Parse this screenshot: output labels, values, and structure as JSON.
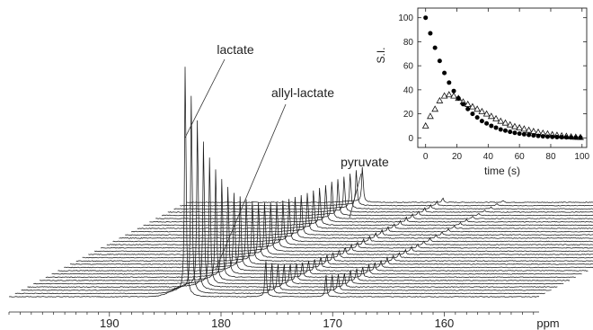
{
  "chart_data": [
    {
      "type": "line",
      "kind": "stacked-spectra",
      "title": "",
      "xlabel": "ppm",
      "ylabel": "",
      "x_reversed": true,
      "xlim": [
        199,
        151.5
      ],
      "x_ticks": [
        190,
        180,
        170,
        160
      ],
      "n_spectra": 30,
      "peaks": [
        {
          "name": "lactate",
          "ppm": 183.2
        },
        {
          "name": "allyl-lactate",
          "ppm": 176.0
        },
        {
          "name": "pyruvate",
          "ppm": 170.6
        }
      ],
      "annotations": [
        "lactate",
        "allyl-lactate",
        "pyruvate"
      ],
      "grid": false
    },
    {
      "type": "scatter",
      "title": "",
      "xlabel": "time (s)",
      "ylabel": "S.I.",
      "xlim": [
        -5,
        103
      ],
      "ylim": [
        -8,
        108
      ],
      "x_ticks": [
        0,
        20,
        40,
        60,
        80,
        100
      ],
      "y_ticks": [
        0,
        20,
        40,
        60,
        80,
        100
      ],
      "grid": false,
      "series": [
        {
          "marker": "filled-circle",
          "color": "#000000",
          "x": [
            0,
            3,
            6,
            9,
            12,
            15,
            18,
            21,
            24,
            27,
            30,
            33,
            36,
            39,
            42,
            45,
            48,
            51,
            54,
            57,
            60,
            63,
            66,
            69,
            72,
            75,
            78,
            81,
            84,
            87,
            90,
            93,
            96,
            99
          ],
          "y": [
            100,
            87,
            75,
            64,
            54,
            46,
            39,
            33,
            28,
            24,
            20,
            17,
            14,
            12,
            10,
            8.5,
            7,
            6,
            5,
            4.2,
            3.5,
            3,
            2.5,
            2,
            1.6,
            1.3,
            1,
            0.8,
            0.6,
            0.5,
            0.4,
            0.3,
            0.2,
            0.2
          ]
        },
        {
          "marker": "open-triangle",
          "color": "#000000",
          "x": [
            0,
            3,
            6,
            9,
            12,
            15,
            18,
            21,
            24,
            27,
            30,
            33,
            36,
            39,
            42,
            45,
            48,
            51,
            54,
            57,
            60,
            63,
            66,
            69,
            72,
            75,
            78,
            81,
            84,
            87,
            90,
            93,
            96,
            99
          ],
          "y": [
            10,
            18,
            24,
            31,
            35,
            36,
            35,
            33,
            30,
            28,
            26,
            24,
            22,
            20,
            18,
            16,
            14,
            12.5,
            11,
            9.5,
            8.5,
            7.5,
            6.5,
            5.5,
            4.8,
            4,
            3.4,
            2.8,
            2.3,
            1.8,
            1.4,
            1,
            0.7,
            0.5
          ]
        }
      ]
    }
  ]
}
